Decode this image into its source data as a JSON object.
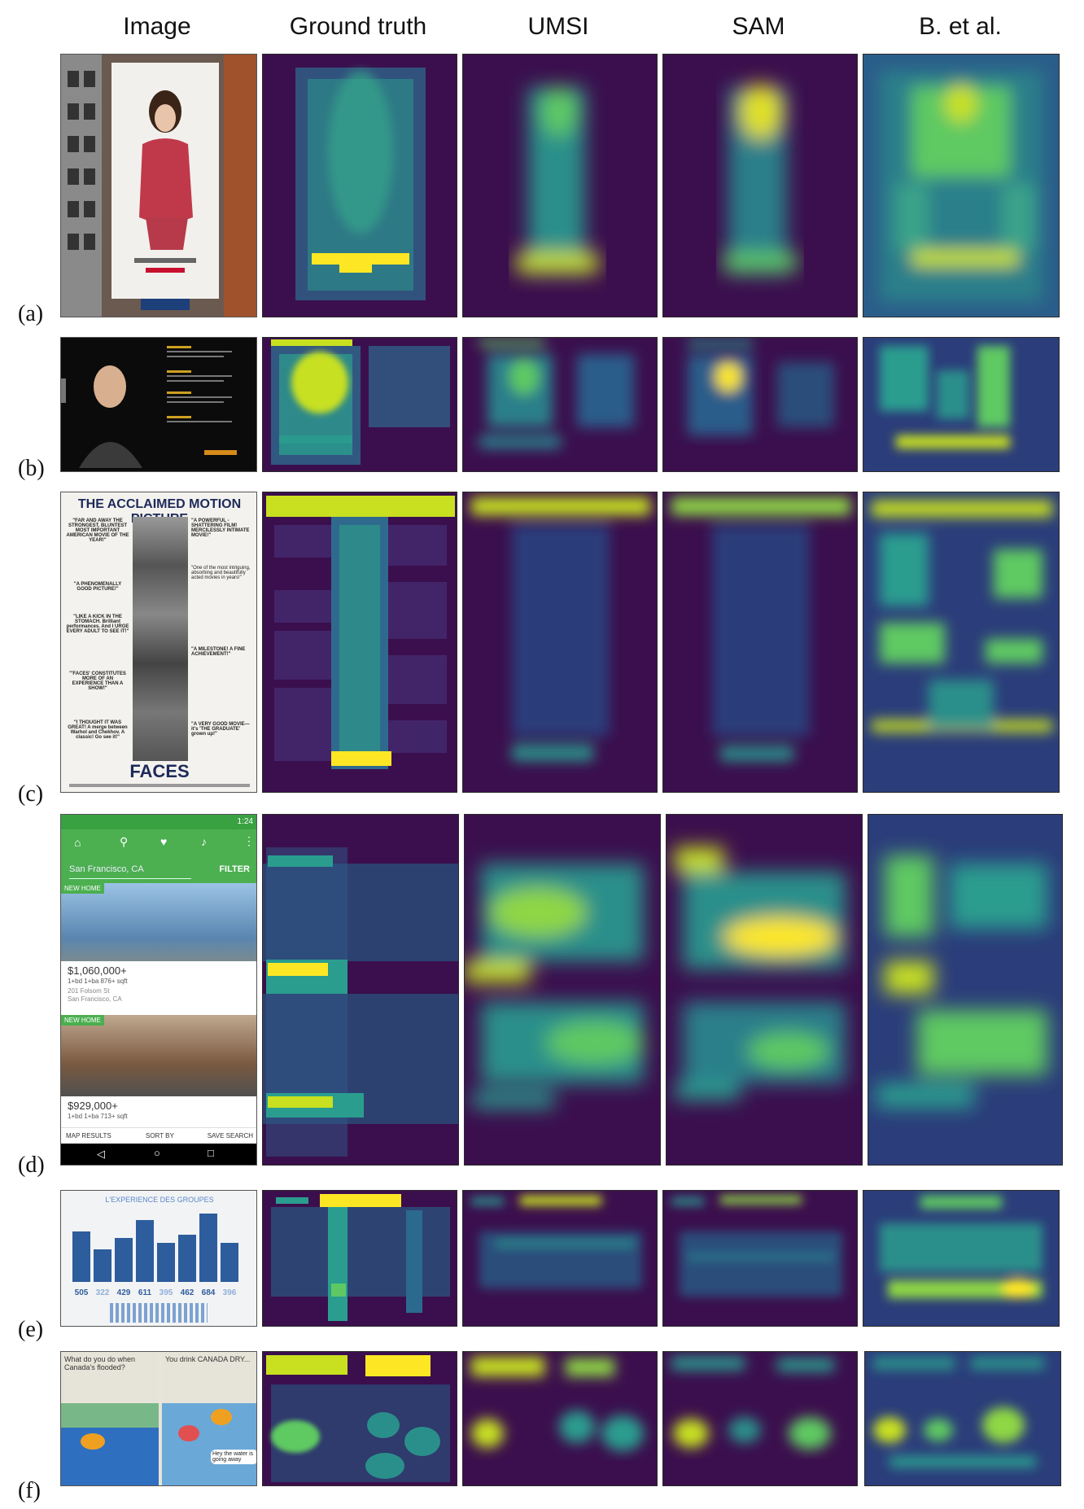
{
  "columns": [
    "Image",
    "Ground truth",
    "UMSI",
    "SAM",
    "B. et al."
  ],
  "rows": [
    {
      "label": "(a)"
    },
    {
      "label": "(b)"
    },
    {
      "label": "(c)",
      "thumb": {
        "headline": "THE ACCLAIMED MOTION PICTURE",
        "quote1": "\"FAR AND AWAY THE STRONGEST, BLUNTEST MOST IMPORTANT AMERICAN MOVIE OF THE YEAR!\"",
        "quote2": "\"A PHENOMENALLY GOOD PICTURE!\"",
        "quote3": "\"LIKE A KICK IN THE STOMACH. Brilliant performances. And I URGE EVERY ADULT TO SEE IT!\"",
        "quote4": "\"'FACES' CONSTITUTES MORE OF AN EXPERIENCE THAN A SHOW!\"",
        "quote5": "\"I THOUGHT IT WAS GREAT! A merge between Warhol and Chekhov. A classic! Go see it!\"",
        "quoteR1": "\"A POWERFUL - SHATTERING FILM! MERCILESSLY INTIMATE MOVIE!\"",
        "quoteR2": "\"One of the most intriguing, absorbing and beautifully acted movies in years!\"",
        "quoteR3": "\"A MILESTONE! A FINE ACHIEVEMENT!\"",
        "quoteR4": "\"A VERY GOOD MOVIE— it's 'THE GRADUATE' grown up!\"",
        "title": "FACES"
      }
    },
    {
      "label": "(d)",
      "thumb": {
        "time": "1:24",
        "search": "San Francisco, CA",
        "filter": "FILTER",
        "badge1": "NEW HOME",
        "price1": "$1,060,000+",
        "specs1": "1+bd  1+ba  876+ sqft",
        "addr1": "201 Folsom St",
        "city1": "San Francisco, CA",
        "badge2": "NEW HOME",
        "price2": "$929,000+",
        "specs2": "1+bd  1+ba  713+ sqft",
        "btn_map": "MAP RESULTS",
        "btn_sort": "SORT BY",
        "btn_save": "SAVE SEARCH"
      }
    },
    {
      "label": "(e)",
      "thumb": {
        "title": "L'EXPERIENCE DES GROUPES",
        "numbers": [
          "505",
          "322",
          "429",
          "611",
          "395",
          "462",
          "684",
          "396"
        ]
      }
    },
    {
      "label": "(f)",
      "thumb": {
        "left": "What do you do when Canada's flooded?",
        "right": "You drink CANADA DRY...",
        "bubble": "Hey the water is going away"
      }
    }
  ],
  "colors": {
    "bg": "#3b0f4d",
    "mid": "#2f6f8e",
    "teal": "#2a9d8f",
    "green": "#5ec962",
    "yellow": "#fde725"
  }
}
